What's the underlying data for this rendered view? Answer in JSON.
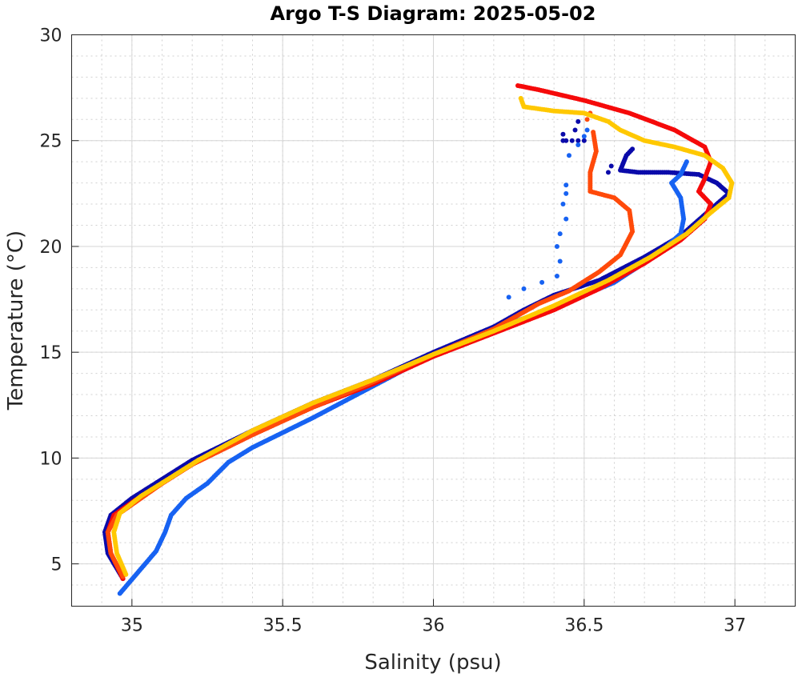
{
  "chart_data": {
    "type": "scatter",
    "title": "Argo T-S Diagram: 2025-05-02",
    "xlabel": "Salinity (psu)",
    "ylabel": "Temperature (°C)",
    "xlim": [
      34.8,
      37.2
    ],
    "ylim": [
      3,
      30
    ],
    "xticks": [
      35,
      35.5,
      36,
      36.5,
      37
    ],
    "xtick_labels": [
      "35",
      "35.5",
      "36",
      "36.5",
      "37"
    ],
    "yticks": [
      5,
      10,
      15,
      20,
      25,
      30
    ],
    "ytick_labels": [
      "5",
      "10",
      "15",
      "20",
      "25",
      "30"
    ],
    "grid": true,
    "minor_grid": true,
    "series": [
      {
        "name": "profile-dark-blue",
        "color": "#0a0aaa",
        "points": [
          [
            34.97,
            4.3
          ],
          [
            34.92,
            5.5
          ],
          [
            34.91,
            6.5
          ],
          [
            34.93,
            7.3
          ],
          [
            35.0,
            8.1
          ],
          [
            35.1,
            9.0
          ],
          [
            35.2,
            9.9
          ],
          [
            35.4,
            11.3
          ],
          [
            35.6,
            12.6
          ],
          [
            35.8,
            13.7
          ],
          [
            36.0,
            15.0
          ],
          [
            36.2,
            16.2
          ],
          [
            36.3,
            17.0
          ],
          [
            36.4,
            17.7
          ],
          [
            36.55,
            18.4
          ],
          [
            36.7,
            19.5
          ],
          [
            36.82,
            20.5
          ],
          [
            36.9,
            21.5
          ],
          [
            36.98,
            22.5
          ],
          [
            36.94,
            23.0
          ],
          [
            36.88,
            23.4
          ],
          [
            36.78,
            23.5
          ],
          [
            36.68,
            23.5
          ],
          [
            36.62,
            23.6
          ],
          [
            36.64,
            24.3
          ],
          [
            36.66,
            24.6
          ]
        ],
        "extra": [
          [
            36.43,
            25.0
          ],
          [
            36.44,
            25.0
          ],
          [
            36.46,
            25.0
          ],
          [
            36.48,
            25.0
          ],
          [
            36.5,
            25.0
          ],
          [
            36.47,
            25.5
          ],
          [
            36.48,
            25.9
          ],
          [
            36.43,
            25.3
          ],
          [
            36.58,
            23.5
          ],
          [
            36.59,
            23.8
          ]
        ]
      },
      {
        "name": "profile-light-blue",
        "color": "#1762f2",
        "points": [
          [
            34.96,
            3.6
          ],
          [
            35.02,
            4.6
          ],
          [
            35.08,
            5.6
          ],
          [
            35.11,
            6.5
          ],
          [
            35.13,
            7.3
          ],
          [
            35.18,
            8.1
          ],
          [
            35.25,
            8.8
          ],
          [
            35.32,
            9.8
          ],
          [
            35.4,
            10.5
          ],
          [
            35.6,
            11.9
          ],
          [
            35.8,
            13.4
          ],
          [
            36.0,
            14.9
          ],
          [
            36.2,
            16.1
          ],
          [
            36.4,
            17.1
          ],
          [
            36.6,
            18.3
          ],
          [
            36.75,
            19.7
          ],
          [
            36.82,
            20.6
          ],
          [
            36.83,
            21.3
          ],
          [
            36.82,
            22.3
          ],
          [
            36.79,
            23.0
          ],
          [
            36.82,
            23.4
          ],
          [
            36.84,
            24.0
          ]
        ],
        "extra": [
          [
            36.25,
            17.6
          ],
          [
            36.3,
            18.0
          ],
          [
            36.36,
            18.3
          ],
          [
            36.41,
            18.6
          ],
          [
            36.42,
            19.3
          ],
          [
            36.41,
            20.0
          ],
          [
            36.42,
            20.6
          ],
          [
            36.44,
            21.3
          ],
          [
            36.43,
            22.0
          ],
          [
            36.44,
            22.5
          ],
          [
            36.44,
            22.9
          ],
          [
            36.45,
            24.3
          ],
          [
            36.48,
            24.8
          ],
          [
            36.51,
            25.5
          ],
          [
            36.5,
            25.2
          ]
        ]
      },
      {
        "name": "profile-red",
        "color": "#f50a0a",
        "points": [
          [
            34.97,
            4.3
          ],
          [
            34.93,
            5.5
          ],
          [
            34.92,
            6.5
          ],
          [
            34.94,
            7.3
          ],
          [
            35.01,
            8.0
          ],
          [
            35.1,
            8.8
          ],
          [
            35.2,
            9.7
          ],
          [
            35.4,
            11.1
          ],
          [
            35.6,
            12.4
          ],
          [
            35.8,
            13.5
          ],
          [
            36.0,
            14.8
          ],
          [
            36.2,
            15.9
          ],
          [
            36.4,
            17.0
          ],
          [
            36.55,
            18.0
          ],
          [
            36.7,
            19.2
          ],
          [
            36.82,
            20.3
          ],
          [
            36.9,
            21.3
          ],
          [
            36.92,
            22.0
          ],
          [
            36.88,
            22.6
          ],
          [
            36.9,
            23.2
          ],
          [
            36.92,
            24.0
          ],
          [
            36.9,
            24.7
          ],
          [
            36.8,
            25.5
          ],
          [
            36.65,
            26.3
          ],
          [
            36.5,
            26.9
          ],
          [
            36.35,
            27.4
          ],
          [
            36.28,
            27.6
          ]
        ],
        "extra": []
      },
      {
        "name": "profile-orange",
        "color": "#ff4a0a",
        "points": [
          [
            34.97,
            4.4
          ],
          [
            34.93,
            5.5
          ],
          [
            34.92,
            6.5
          ],
          [
            34.95,
            7.3
          ],
          [
            35.02,
            8.0
          ],
          [
            35.1,
            8.8
          ],
          [
            35.2,
            9.7
          ],
          [
            35.4,
            11.1
          ],
          [
            35.6,
            12.4
          ],
          [
            35.8,
            13.6
          ],
          [
            36.0,
            14.9
          ],
          [
            36.2,
            16.1
          ],
          [
            36.35,
            17.3
          ],
          [
            36.45,
            17.9
          ],
          [
            36.55,
            18.8
          ],
          [
            36.62,
            19.6
          ],
          [
            36.66,
            20.7
          ],
          [
            36.65,
            21.7
          ],
          [
            36.6,
            22.3
          ],
          [
            36.52,
            22.6
          ],
          [
            36.52,
            23.5
          ],
          [
            36.54,
            24.5
          ],
          [
            36.53,
            25.4
          ]
        ],
        "extra": [
          [
            36.52,
            26.3
          ],
          [
            36.51,
            26.0
          ]
        ]
      },
      {
        "name": "profile-yellow",
        "color": "#ffc800",
        "points": [
          [
            34.98,
            4.5
          ],
          [
            34.95,
            5.5
          ],
          [
            34.94,
            6.5
          ],
          [
            34.96,
            7.4
          ],
          [
            35.03,
            8.2
          ],
          [
            35.12,
            9.0
          ],
          [
            35.22,
            9.9
          ],
          [
            35.4,
            11.3
          ],
          [
            35.6,
            12.6
          ],
          [
            35.8,
            13.7
          ],
          [
            36.0,
            14.9
          ],
          [
            36.2,
            16.0
          ],
          [
            36.4,
            17.2
          ],
          [
            36.58,
            18.4
          ],
          [
            36.72,
            19.5
          ],
          [
            36.84,
            20.6
          ],
          [
            36.92,
            21.6
          ],
          [
            36.98,
            22.3
          ],
          [
            36.99,
            23.0
          ],
          [
            36.96,
            23.7
          ],
          [
            36.9,
            24.3
          ],
          [
            36.8,
            24.7
          ],
          [
            36.7,
            25.0
          ],
          [
            36.62,
            25.5
          ],
          [
            36.58,
            25.9
          ],
          [
            36.5,
            26.3
          ],
          [
            36.4,
            26.4
          ],
          [
            36.3,
            26.6
          ],
          [
            36.29,
            27.0
          ]
        ],
        "extra": []
      }
    ]
  }
}
